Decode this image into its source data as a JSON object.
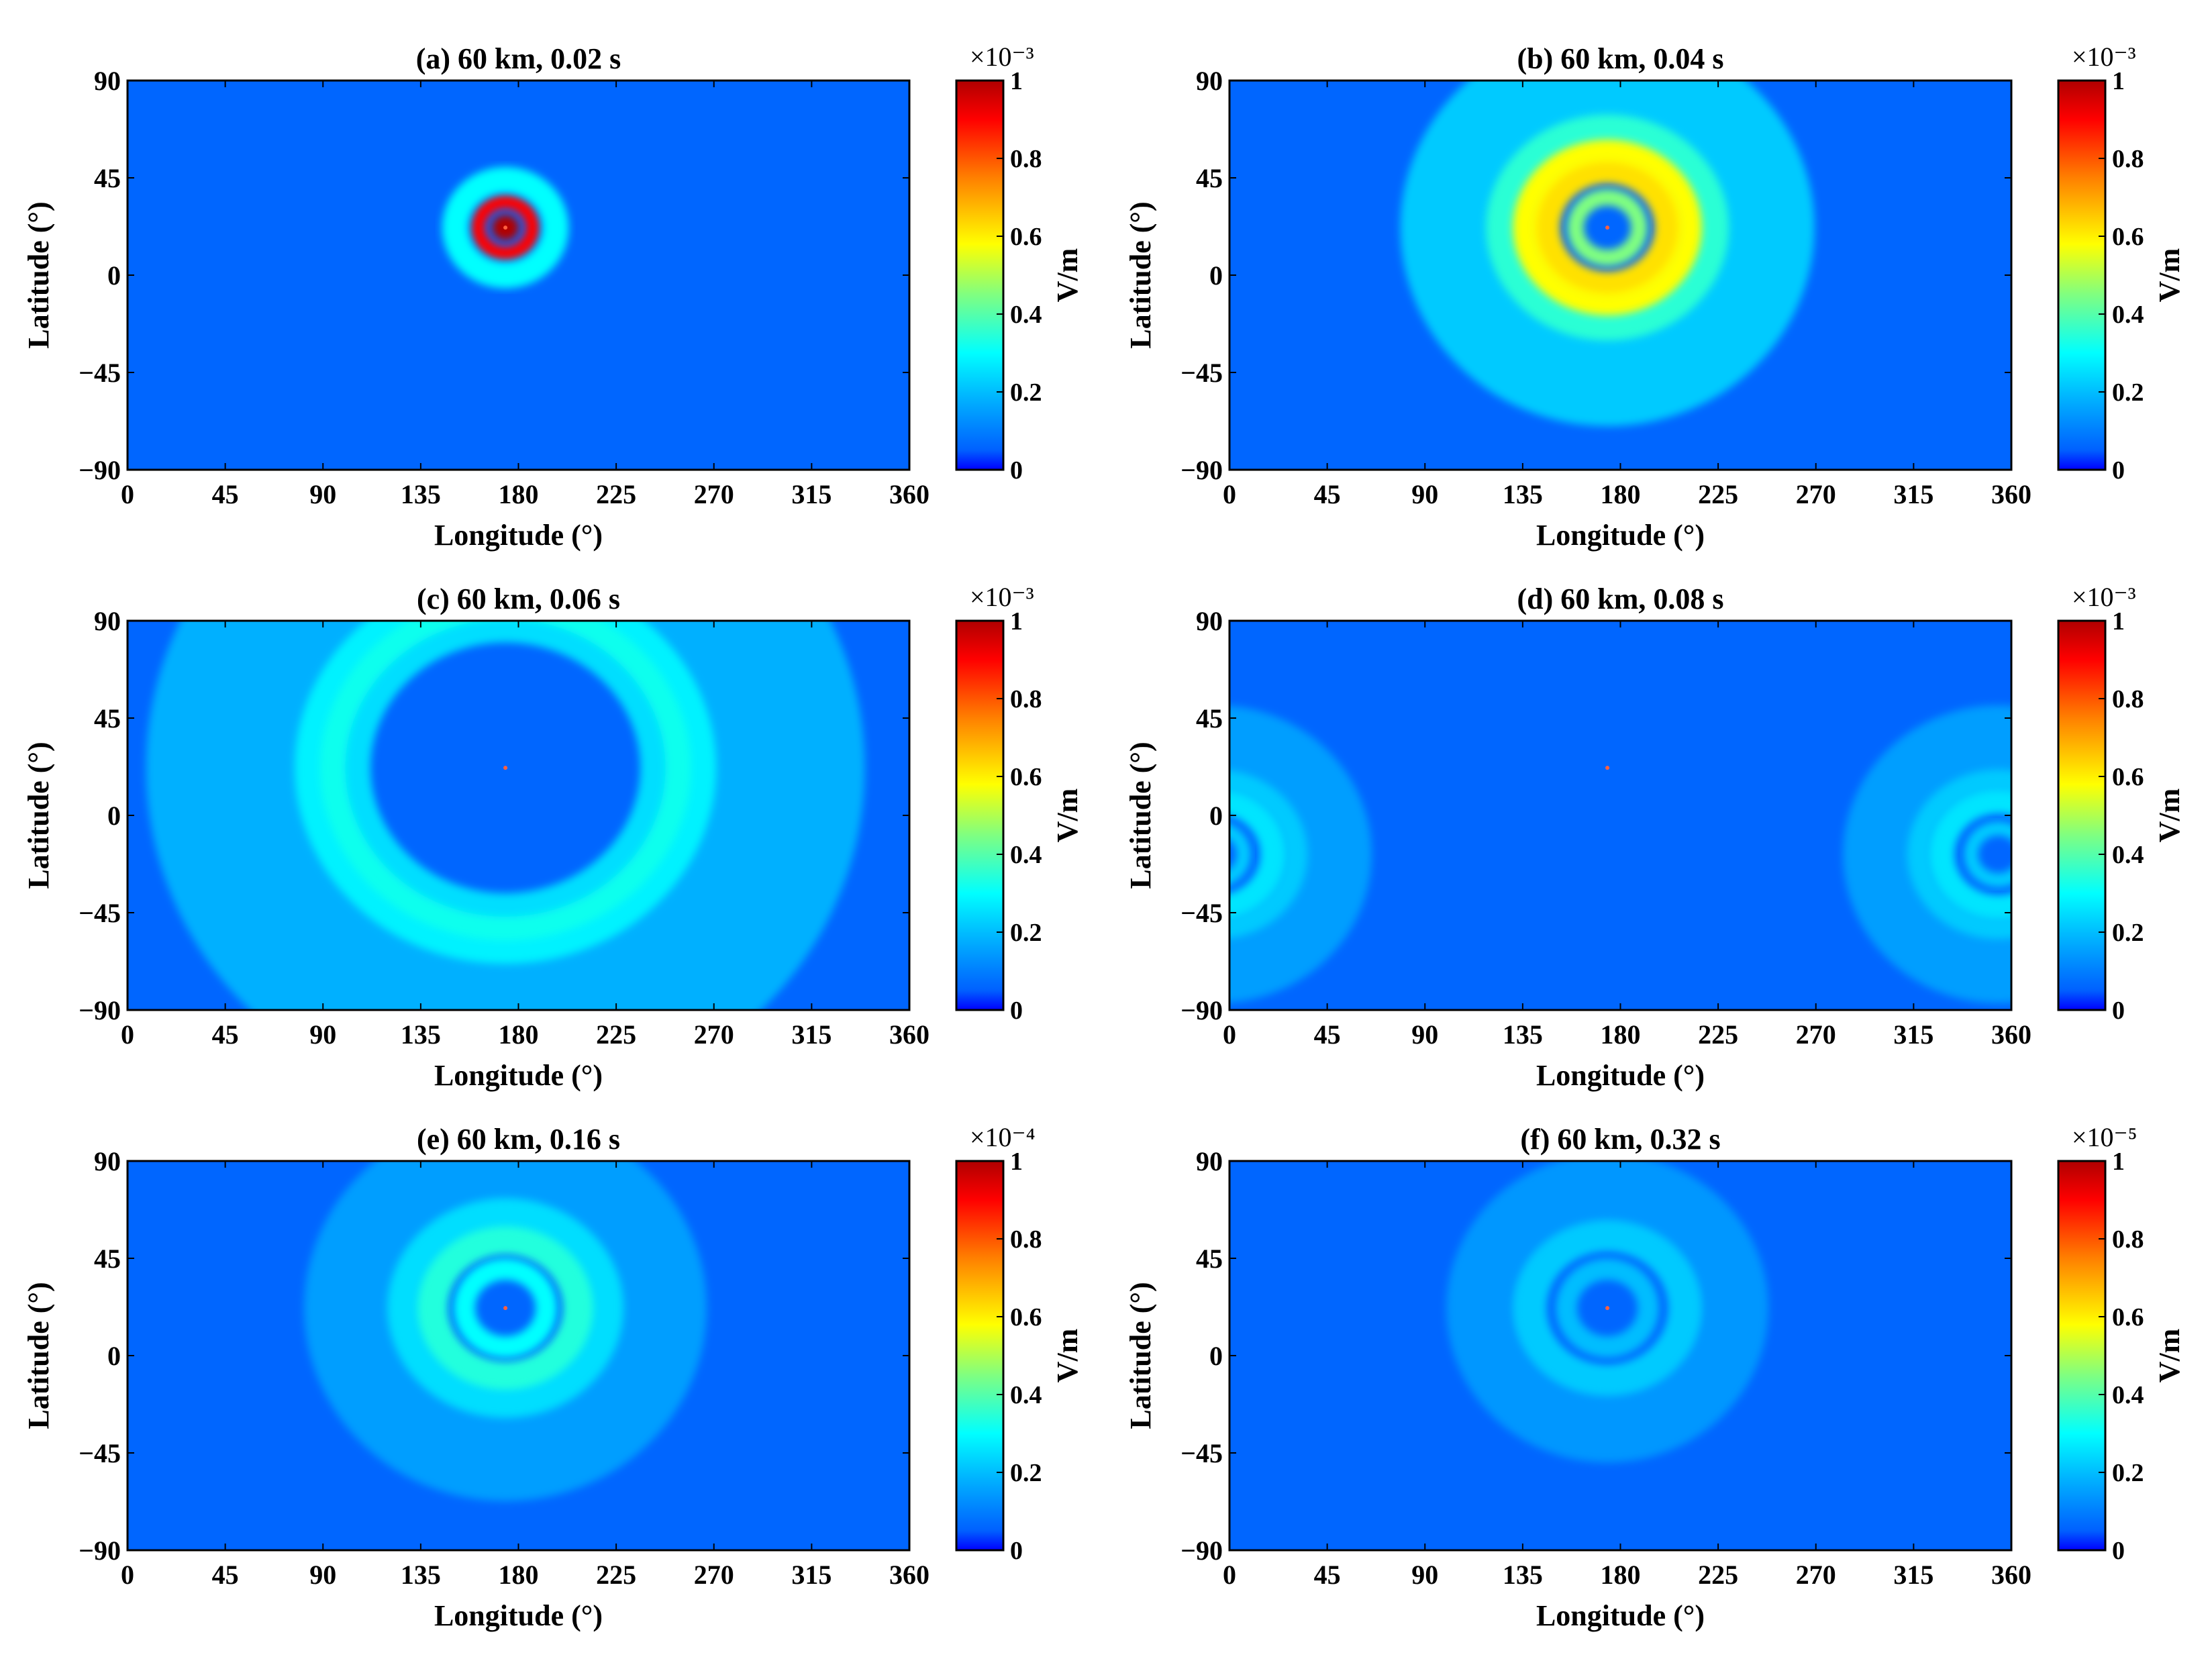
{
  "figure": {
    "shared": {
      "xlabel": "Longitude (°)",
      "ylabel": "Latitude (°)",
      "xticks": [
        "0",
        "45",
        "90",
        "135",
        "180",
        "225",
        "270",
        "315",
        "360"
      ],
      "yticks": [
        "90",
        "45",
        "0",
        "−45",
        "−90"
      ],
      "colorbar_unit": "V/m",
      "colorbar_ticks": [
        "1",
        "0.8",
        "0.6",
        "0.4",
        "0.2",
        "0"
      ],
      "colormap": [
        "#00008f",
        "#0000ff",
        "#0080ff",
        "#00ffff",
        "#80ff80",
        "#ffff00",
        "#ff8000",
        "#ff0000",
        "#800000"
      ]
    }
  },
  "chart_data": [
    {
      "type": "heatmap",
      "title": "(a) 60 km, 0.02 s",
      "xlabel": "Longitude (°)",
      "ylabel": "Latitude (°)",
      "xlim": [
        0,
        360
      ],
      "ylim": [
        -90,
        90
      ],
      "colorbar": {
        "label": "V/m",
        "range": [
          0,
          1
        ],
        "multiplier": "×10⁻³"
      },
      "source": {
        "lon": 174,
        "lat": 22
      },
      "features": [
        {
          "kind": "core",
          "lon": 174,
          "lat": 22,
          "radius_deg": 6,
          "value": 1.0
        },
        {
          "kind": "ring",
          "lon": 174,
          "lat": 22,
          "radius_deg": 12,
          "value": 0.9
        },
        {
          "kind": "ring",
          "lon": 174,
          "lat": 22,
          "radius_deg": 22,
          "value": 0.3
        }
      ]
    },
    {
      "type": "heatmap",
      "title": "(b) 60 km, 0.04 s",
      "xlabel": "Longitude (°)",
      "ylabel": "Latitude (°)",
      "xlim": [
        0,
        360
      ],
      "ylim": [
        -90,
        90
      ],
      "colorbar": {
        "label": "V/m",
        "range": [
          0,
          1
        ],
        "multiplier": "×10⁻³"
      },
      "source": {
        "lon": 174,
        "lat": 22
      },
      "features": [
        {
          "kind": "ring",
          "lon": 174,
          "lat": 22,
          "radius_deg": 14,
          "value": 0.45
        },
        {
          "kind": "ring",
          "lon": 174,
          "lat": 22,
          "radius_deg": 28,
          "value": 0.62
        },
        {
          "kind": "ring",
          "lon": 174,
          "lat": 22,
          "radius_deg": 42,
          "value": 0.58
        },
        {
          "kind": "ring",
          "lon": 174,
          "lat": 22,
          "radius_deg": 56,
          "value": 0.35
        },
        {
          "kind": "ring",
          "lon": 174,
          "lat": 22,
          "radius_deg": 72,
          "value": 0.22
        }
      ]
    },
    {
      "type": "heatmap",
      "title": "(c) 60 km, 0.06 s",
      "xlabel": "Longitude (°)",
      "ylabel": "Latitude (°)",
      "xlim": [
        0,
        360
      ],
      "ylim": [
        -90,
        90
      ],
      "colorbar": {
        "label": "V/m",
        "range": [
          0,
          1
        ],
        "multiplier": "×10⁻³"
      },
      "source": {
        "lon": 174,
        "lat": 22
      },
      "features": [
        {
          "kind": "ring",
          "lon": 174,
          "lat": 22,
          "radius_deg": 80,
          "value": 0.25
        },
        {
          "kind": "ring",
          "lon": 174,
          "lat": 22,
          "radius_deg": 95,
          "value": 0.32
        },
        {
          "kind": "ring",
          "lon": 174,
          "lat": 22,
          "radius_deg": 110,
          "value": 0.28
        },
        {
          "kind": "ring",
          "lon": 174,
          "lat": 22,
          "radius_deg": 125,
          "value": 0.18
        }
      ]
    },
    {
      "type": "heatmap",
      "title": "(d) 60 km, 0.08 s",
      "xlabel": "Longitude (°)",
      "ylabel": "Latitude (°)",
      "xlim": [
        0,
        360
      ],
      "ylim": [
        -90,
        90
      ],
      "colorbar": {
        "label": "V/m",
        "range": [
          0,
          1
        ],
        "multiplier": "×10⁻³"
      },
      "source": {
        "lon": 174,
        "lat": 22
      },
      "features": [
        {
          "kind": "ring",
          "lon": 354,
          "lat": -18,
          "radius_deg": 12,
          "value": 0.22
        },
        {
          "kind": "ring",
          "lon": 354,
          "lat": -18,
          "radius_deg": 26,
          "value": 0.26
        },
        {
          "kind": "ring",
          "lon": 354,
          "lat": -18,
          "radius_deg": 40,
          "value": 0.22
        },
        {
          "kind": "ring",
          "lon": 354,
          "lat": -18,
          "radius_deg": 54,
          "value": 0.15
        }
      ]
    },
    {
      "type": "heatmap",
      "title": "(e) 60 km, 0.16 s",
      "xlabel": "Longitude (°)",
      "ylabel": "Latitude (°)",
      "xlim": [
        0,
        360
      ],
      "ylim": [
        -90,
        90
      ],
      "colorbar": {
        "label": "V/m",
        "range": [
          0,
          1
        ],
        "multiplier": "×10⁻⁴"
      },
      "source": {
        "lon": 174,
        "lat": 22
      },
      "features": [
        {
          "kind": "ring",
          "lon": 174,
          "lat": 22,
          "radius_deg": 18,
          "value": 0.3
        },
        {
          "kind": "ring",
          "lon": 174,
          "lat": 22,
          "radius_deg": 34,
          "value": 0.34
        },
        {
          "kind": "ring",
          "lon": 174,
          "lat": 22,
          "radius_deg": 52,
          "value": 0.25
        },
        {
          "kind": "ring",
          "lon": 174,
          "lat": 22,
          "radius_deg": 70,
          "value": 0.15
        }
      ]
    },
    {
      "type": "heatmap",
      "title": "(f) 60 km, 0.32 s",
      "xlabel": "Longitude (°)",
      "ylabel": "Latitude (°)",
      "xlim": [
        0,
        360
      ],
      "ylim": [
        -90,
        90
      ],
      "colorbar": {
        "label": "V/m",
        "range": [
          0,
          1
        ],
        "multiplier": "×10⁻⁵"
      },
      "source": {
        "lon": 174,
        "lat": 22
      },
      "features": [
        {
          "kind": "ring",
          "lon": 174,
          "lat": 22,
          "radius_deg": 18,
          "value": 0.2
        },
        {
          "kind": "ring",
          "lon": 174,
          "lat": 22,
          "radius_deg": 36,
          "value": 0.22
        },
        {
          "kind": "ring",
          "lon": 174,
          "lat": 22,
          "radius_deg": 56,
          "value": 0.14
        }
      ]
    }
  ]
}
